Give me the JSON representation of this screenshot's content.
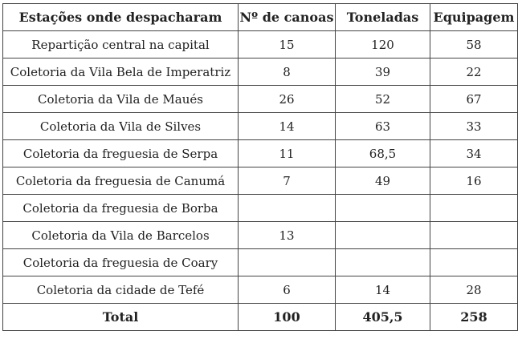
{
  "table": {
    "headers": [
      "Estações onde despacharam",
      "Nº de canoas",
      "Toneladas",
      "Equipagem"
    ],
    "rows": [
      [
        "Repartição central na capital",
        "15",
        "120",
        "58"
      ],
      [
        "Coletoria da Vila Bela de Imperatriz",
        "8",
        "39",
        "22"
      ],
      [
        "Coletoria da Vila de Maués",
        "26",
        "52",
        "67"
      ],
      [
        "Coletoria da Vila de Silves",
        "14",
        "63",
        "33"
      ],
      [
        "Coletoria da freguesia de Serpa",
        "11",
        "68,5",
        "34"
      ],
      [
        "Coletoria da freguesia de Canumá",
        "7",
        "49",
        "16"
      ],
      [
        "Coletoria da freguesia de Borba",
        "",
        "",
        ""
      ],
      [
        "Coletoria da Vila de Barcelos",
        "13",
        "",
        ""
      ],
      [
        "Coletoria da freguesia de Coary",
        "",
        "",
        ""
      ],
      [
        "Coletoria da cidade de Tefé",
        "6",
        "14",
        "28"
      ]
    ],
    "total": [
      "Total",
      "100",
      "405,5",
      "258"
    ]
  }
}
